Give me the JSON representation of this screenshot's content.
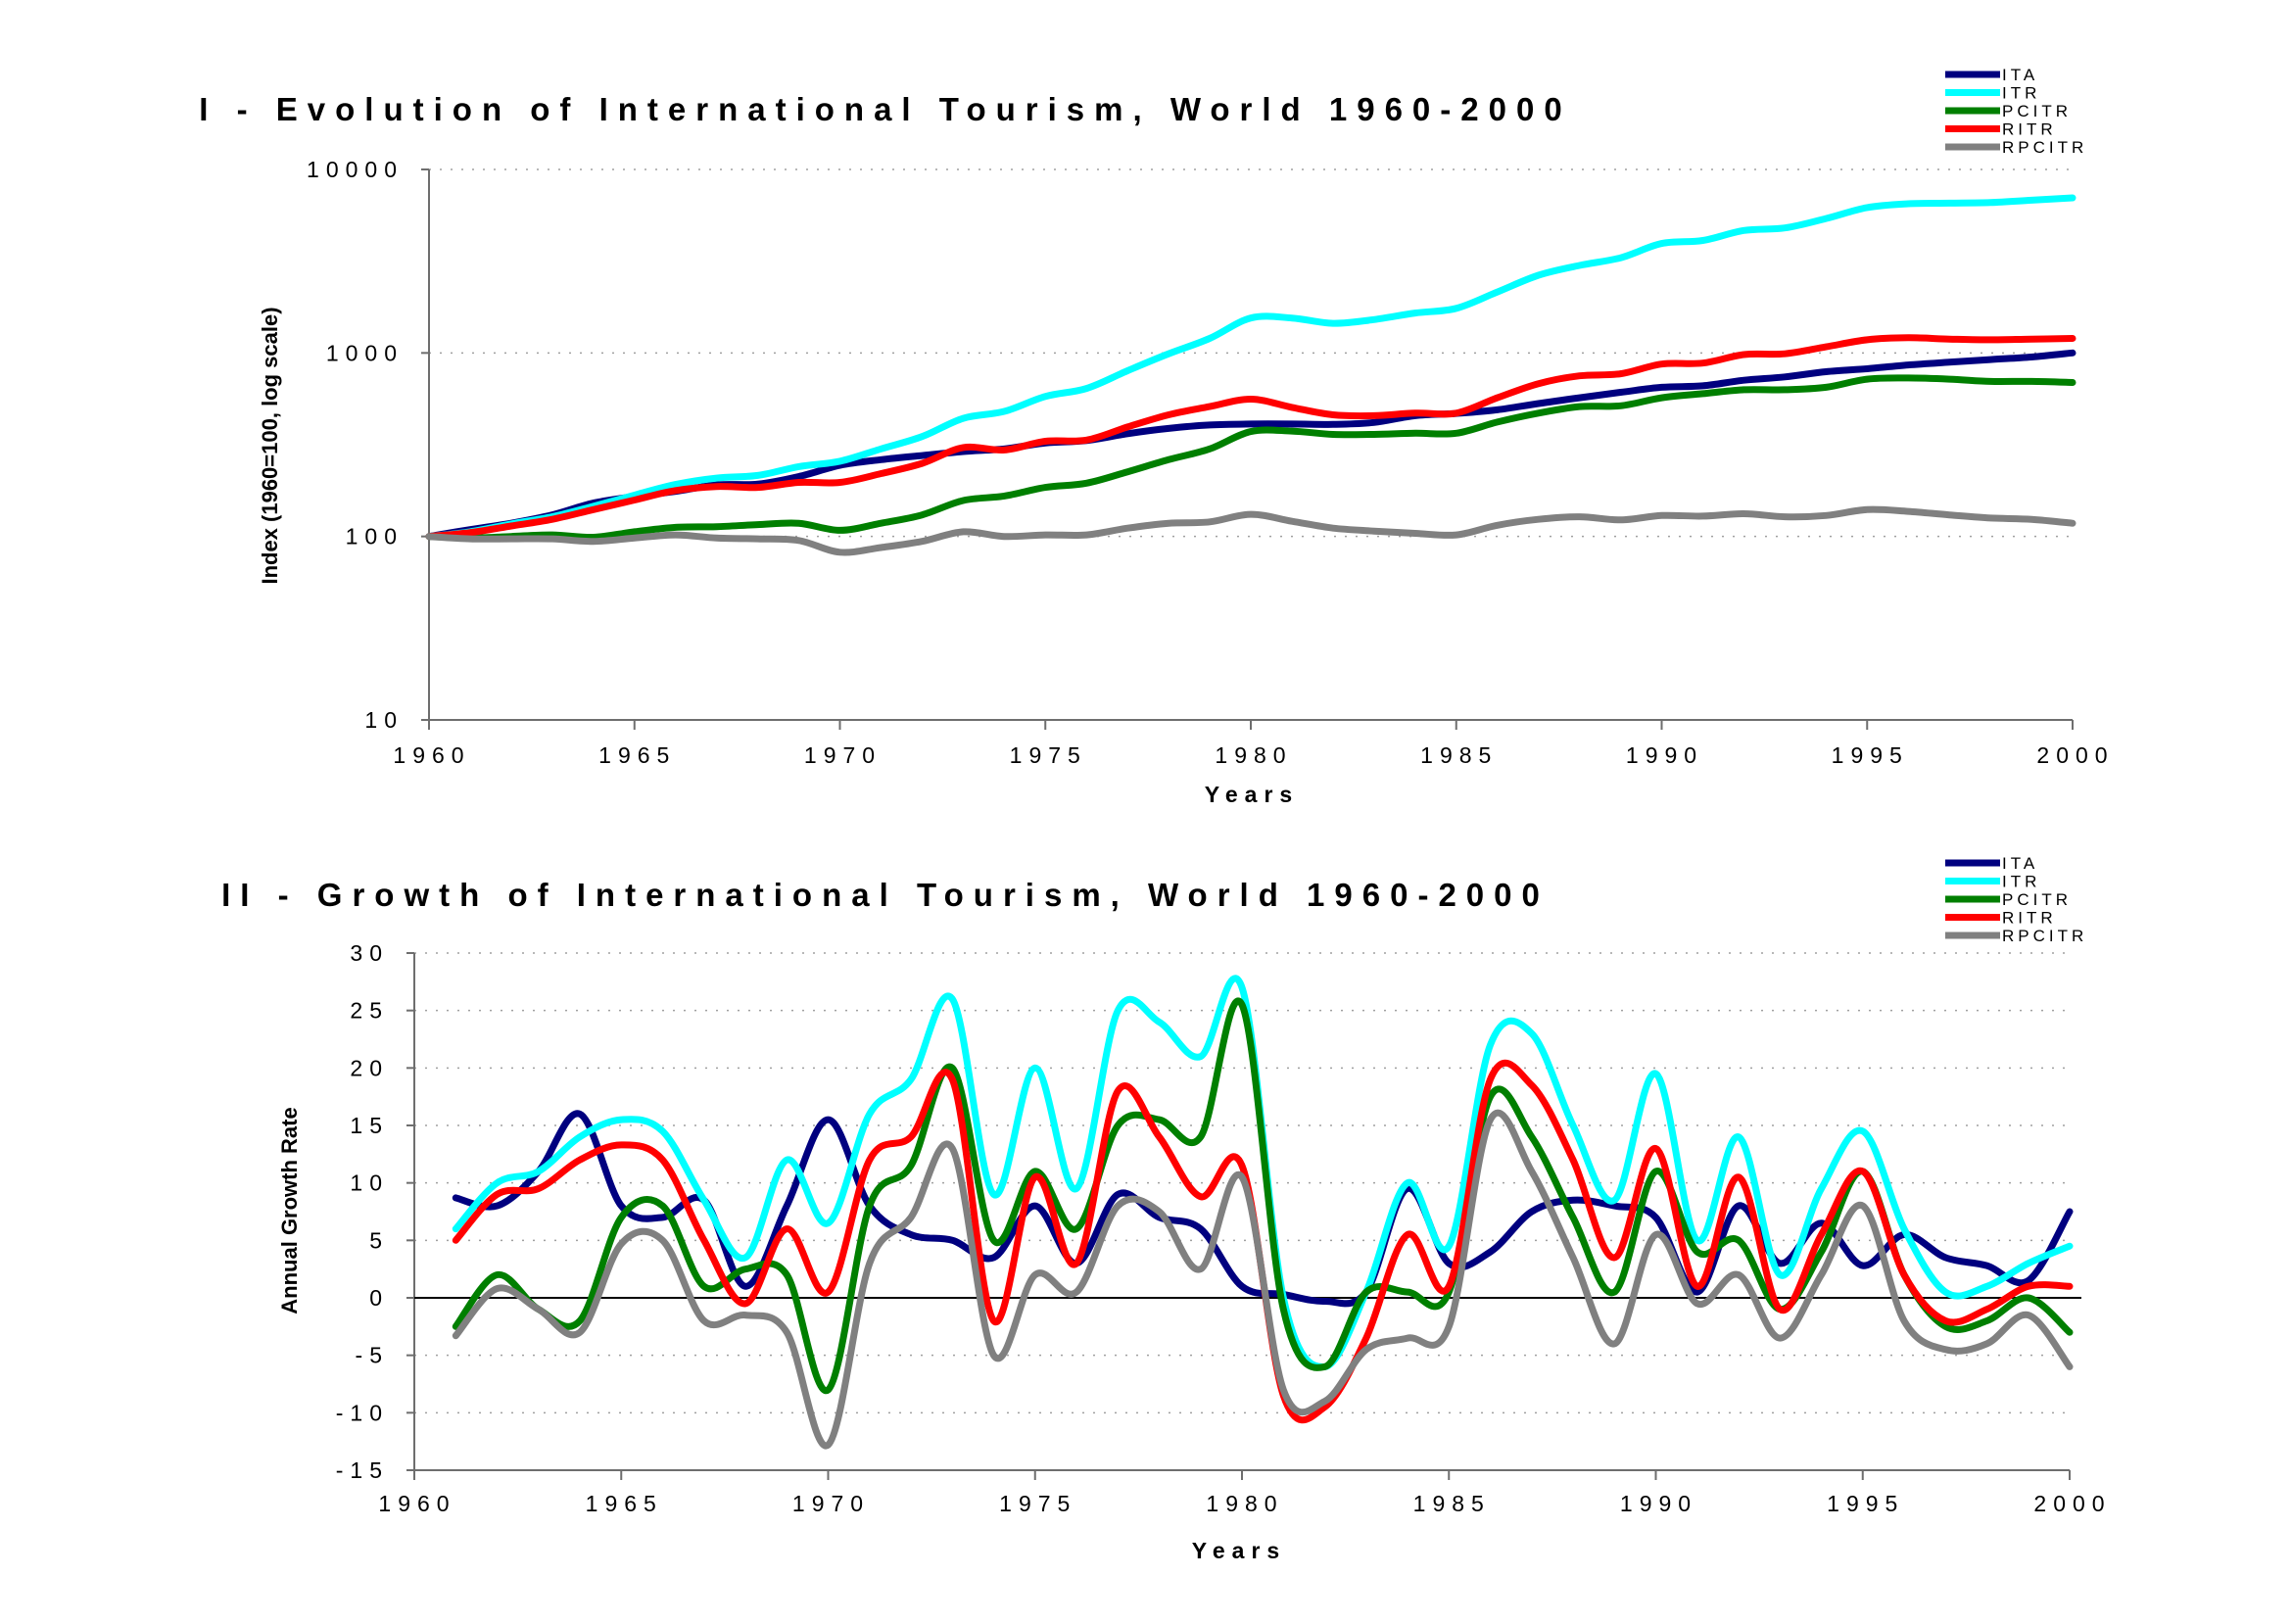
{
  "chart_data": [
    {
      "type": "line",
      "title": "I - Evolution of International Tourism, World 1960-2000",
      "xlabel": "Years",
      "ylabel": "Index (1960=100, log scale)",
      "yscale": "log",
      "xlim": [
        1960,
        2000
      ],
      "ylim": [
        10,
        10000
      ],
      "xticks": [
        "1960",
        "1965",
        "1970",
        "1975",
        "1980",
        "1985",
        "1990",
        "1995",
        "2000"
      ],
      "yticks": [
        "10",
        "100",
        "1000",
        "10000"
      ],
      "grid": "horizontal dotted",
      "legend_position": "top-right",
      "x": [
        1960,
        1961,
        1962,
        1963,
        1964,
        1965,
        1966,
        1967,
        1968,
        1969,
        1970,
        1971,
        1972,
        1973,
        1974,
        1975,
        1976,
        1977,
        1978,
        1979,
        1980,
        1981,
        1982,
        1983,
        1984,
        1985,
        1986,
        1987,
        1988,
        1989,
        1990,
        1991,
        1992,
        1993,
        1994,
        1995,
        1996,
        1997,
        1998,
        1999,
        2000
      ],
      "series": [
        {
          "name": "ITA",
          "color": "#00007f",
          "values": [
            100,
            109,
            118,
            131,
            152,
            165,
            176,
            191,
            193,
            212,
            244,
            262,
            276,
            290,
            300,
            323,
            333,
            363,
            388,
            405,
            410,
            410,
            408,
            418,
            455,
            468,
            490,
            530,
            570,
            610,
            650,
            662,
            710,
            740,
            790,
            820,
            860,
            890,
            920,
            950,
            1000
          ]
        },
        {
          "name": "ITR",
          "color": "#00ffff",
          "values": [
            100,
            106,
            117,
            128,
            146,
            168,
            192,
            208,
            215,
            240,
            257,
            300,
            350,
            440,
            480,
            580,
            640,
            800,
            990,
            1200,
            1550,
            1550,
            1450,
            1520,
            1650,
            1750,
            2150,
            2650,
            3000,
            3300,
            3950,
            4100,
            4650,
            4800,
            5400,
            6200,
            6500,
            6550,
            6600,
            6800,
            7000
          ]
        },
        {
          "name": "PCITR",
          "color": "#007f00",
          "values": [
            100,
            98,
            100,
            102,
            99,
            106,
            112,
            113,
            116,
            118,
            108,
            118,
            131,
            157,
            166,
            185,
            195,
            225,
            262,
            300,
            373,
            375,
            360,
            360,
            365,
            365,
            420,
            470,
            510,
            515,
            570,
            600,
            630,
            630,
            650,
            720,
            730,
            720,
            700,
            700,
            690
          ]
        },
        {
          "name": "RITR",
          "color": "#ff0000",
          "values": [
            100,
            105,
            114,
            124,
            140,
            158,
            178,
            187,
            185,
            197,
            197,
            220,
            250,
            305,
            296,
            330,
            335,
            395,
            460,
            510,
            560,
            505,
            460,
            455,
            470,
            470,
            570,
            680,
            750,
            770,
            870,
            880,
            980,
            990,
            1080,
            1180,
            1210,
            1190,
            1180,
            1190,
            1200
          ]
        },
        {
          "name": "RPCITR",
          "color": "#808080",
          "values": [
            100,
            97,
            97,
            97,
            94,
            98,
            102,
            98,
            97,
            95,
            82,
            87,
            94,
            106,
            100,
            102,
            102,
            111,
            118,
            120,
            132,
            121,
            111,
            107,
            104,
            102,
            115,
            124,
            128,
            123,
            130,
            129,
            133,
            128,
            130,
            140,
            137,
            131,
            126,
            124,
            118
          ]
        }
      ]
    },
    {
      "type": "line",
      "title": "II - Growth of International Tourism, World 1960-2000",
      "xlabel": "Years",
      "ylabel": "Annual Growth Rate",
      "xlim": [
        1960,
        2000
      ],
      "ylim": [
        -15,
        30
      ],
      "xticks": [
        "1960",
        "1965",
        "1970",
        "1975",
        "1980",
        "1985",
        "1990",
        "1995",
        "2000"
      ],
      "yticks": [
        "30",
        "25",
        "20",
        "15",
        "10",
        "5",
        "0",
        "-5",
        "-10",
        "-15"
      ],
      "grid": "horizontal dotted",
      "legend_position": "top-right",
      "x": [
        1961,
        1962,
        1963,
        1964,
        1965,
        1966,
        1967,
        1968,
        1969,
        1970,
        1971,
        1972,
        1973,
        1974,
        1975,
        1976,
        1977,
        1978,
        1979,
        1980,
        1981,
        1982,
        1983,
        1984,
        1985,
        1986,
        1987,
        1988,
        1989,
        1990,
        1991,
        1992,
        1993,
        1994,
        1995,
        1996,
        1997,
        1998,
        1999,
        2000
      ],
      "series": [
        {
          "name": "ITA",
          "color": "#00007f",
          "values": [
            8.7,
            8,
            11,
            16,
            8,
            7,
            8.5,
            1,
            8,
            15.5,
            8,
            5.5,
            5,
            3.5,
            8,
            3,
            9,
            7,
            6,
            1,
            0.3,
            -0.3,
            0.5,
            9.5,
            3,
            4,
            7.5,
            8.5,
            8,
            7,
            0.5,
            8,
            3,
            6.5,
            2.8,
            5.5,
            3.5,
            2.8,
            1.5,
            7.5
          ]
        },
        {
          "name": "ITR",
          "color": "#00ffff",
          "values": [
            6,
            10,
            11,
            14,
            15.5,
            14.5,
            8.5,
            3.5,
            12,
            6.5,
            16,
            19,
            26,
            9,
            20,
            9.5,
            25,
            24,
            21,
            27,
            0,
            -6,
            0.5,
            10,
            4.5,
            22,
            23,
            15,
            8.5,
            19.5,
            5,
            14,
            2,
            9.5,
            14.5,
            6,
            0.5,
            1,
            3,
            4.5
          ]
        },
        {
          "name": "PCITR",
          "color": "#007f00",
          "values": [
            -2.5,
            2,
            -1,
            -2,
            7,
            8,
            1,
            2.5,
            2,
            -8,
            8,
            11.5,
            20,
            5,
            11,
            6,
            15,
            15.5,
            14,
            25.5,
            -1,
            -6,
            0.5,
            0.5,
            0.5,
            17.5,
            14,
            7,
            0.5,
            11,
            4,
            5,
            -1,
            4,
            11,
            2,
            -2.5,
            -2,
            0,
            -3
          ]
        },
        {
          "name": "RITR",
          "color": "#ff0000",
          "values": [
            5,
            9,
            9.5,
            12,
            13.3,
            12,
            5,
            -0.5,
            6,
            0.5,
            12,
            14,
            19,
            -2,
            10.5,
            3,
            18,
            14,
            8.8,
            11.5,
            -8.5,
            -9.5,
            -3.5,
            5.5,
            1,
            19,
            18.5,
            12,
            3.5,
            13,
            1,
            10.5,
            -1,
            5.5,
            11,
            2,
            -2,
            -1,
            1,
            1
          ]
        },
        {
          "name": "RPCITR",
          "color": "#808080",
          "values": [
            -3.3,
            0.8,
            -1,
            -3,
            4.7,
            5,
            -2,
            -1.5,
            -3,
            -12.8,
            3,
            7,
            13,
            -5,
            2,
            0.5,
            8,
            7.5,
            2.5,
            10.5,
            -8,
            -9,
            -4.5,
            -3.5,
            -2.5,
            15.5,
            11,
            3.5,
            -4,
            5.5,
            -0.5,
            2,
            -3.5,
            2,
            8,
            -2,
            -4.5,
            -4,
            -1.5,
            -6
          ]
        }
      ]
    }
  ]
}
